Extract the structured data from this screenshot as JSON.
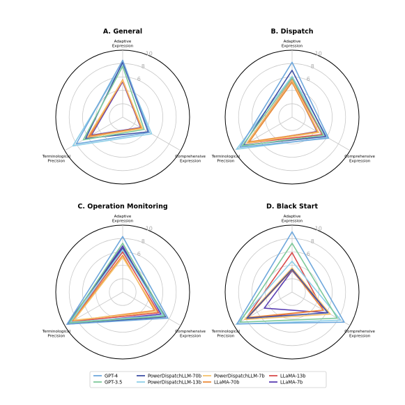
{
  "chart_data": {
    "type": "radar",
    "axes": [
      "Adaptive\nExpression",
      "Comprehensive\nExpression",
      "Terminological\nPrecision"
    ],
    "rlim": [
      0,
      10
    ],
    "radial_ticks": [
      2,
      4,
      6,
      8,
      10
    ],
    "radial_tick_labels": [
      "6",
      "8",
      "10"
    ],
    "grid": true,
    "legend_position": "bottom-center",
    "series_order": [
      "GPT-4",
      "GPT-3.5",
      "PowerDispatchLLM-70b",
      "PowerDispatchLLM-13b",
      "PowerDispatchLLM-7b",
      "LLaMA-70b",
      "LLaMA-13b",
      "LLaMA-7b"
    ],
    "colors": {
      "GPT-4": "#6fa8dc",
      "GPT-3.5": "#7dc99a",
      "PowerDispatchLLM-70b": "#3f51a6",
      "PowerDispatchLLM-13b": "#8ecfe8",
      "PowerDispatchLLM-7b": "#f5c26b",
      "LLaMA-70b": "#ec8c3c",
      "LLaMA-13b": "#d94c4c",
      "LLaMA-7b": "#5b3fb3"
    },
    "panels": [
      {
        "title": "A. General",
        "series": [
          {
            "name": "GPT-4",
            "values": [
              8.5,
              4.6,
              8.0
            ]
          },
          {
            "name": "GPT-3.5",
            "values": [
              7.6,
              3.7,
              6.8
            ]
          },
          {
            "name": "PowerDispatchLLM-70b",
            "values": [
              8.2,
              4.4,
              6.4
            ]
          },
          {
            "name": "PowerDispatchLLM-13b",
            "values": [
              7.9,
              5.0,
              8.6
            ]
          },
          {
            "name": "PowerDispatchLLM-7b",
            "values": [
              5.5,
              3.4,
              6.1
            ]
          },
          {
            "name": "LLaMA-70b",
            "values": [
              5.6,
              3.2,
              5.6
            ]
          },
          {
            "name": "LLaMA-13b",
            "values": [
              5.4,
              3.2,
              5.9
            ]
          },
          {
            "name": "LLaMA-7b",
            "values": [
              5.3,
              3.1,
              5.4
            ]
          }
        ]
      },
      {
        "title": "B. Dispatch",
        "series": [
          {
            "name": "GPT-4",
            "values": [
              8.2,
              6.3,
              9.0
            ]
          },
          {
            "name": "GPT-3.5",
            "values": [
              5.9,
              5.4,
              8.6
            ]
          },
          {
            "name": "PowerDispatchLLM-70b",
            "values": [
              7.0,
              5.8,
              8.4
            ]
          },
          {
            "name": "PowerDispatchLLM-13b",
            "values": [
              6.1,
              6.1,
              9.6
            ]
          },
          {
            "name": "PowerDispatchLLM-7b",
            "values": [
              5.5,
              4.6,
              7.8
            ]
          },
          {
            "name": "LLaMA-70b",
            "values": [
              5.2,
              4.4,
              7.4
            ]
          },
          {
            "name": "LLaMA-13b",
            "values": [
              5.6,
              5.2,
              7.8
            ]
          },
          {
            "name": "LLaMA-7b",
            "values": [
              5.3,
              4.3,
              7.7
            ]
          }
        ]
      },
      {
        "title": "C. Operation Monitoring",
        "series": [
          {
            "name": "GPT-4",
            "values": [
              8.3,
              7.8,
              9.6
            ]
          },
          {
            "name": "GPT-3.5",
            "values": [
              7.3,
              7.2,
              9.2
            ]
          },
          {
            "name": "PowerDispatchLLM-70b",
            "values": [
              6.6,
              7.4,
              9.6
            ]
          },
          {
            "name": "PowerDispatchLLM-13b",
            "values": [
              6.3,
              7.0,
              9.0
            ]
          },
          {
            "name": "PowerDispatchLLM-7b",
            "values": [
              5.2,
              5.9,
              8.4
            ]
          },
          {
            "name": "LLaMA-70b",
            "values": [
              5.5,
              5.5,
              8.6
            ]
          },
          {
            "name": "LLaMA-13b",
            "values": [
              6.0,
              6.2,
              8.8
            ]
          },
          {
            "name": "LLaMA-7b",
            "values": [
              6.9,
              6.6,
              9.4
            ]
          }
        ]
      },
      {
        "title": "D. Black Start",
        "series": [
          {
            "name": "GPT-4",
            "values": [
              9.0,
              9.0,
              9.5
            ]
          },
          {
            "name": "GPT-3.5",
            "values": [
              7.3,
              7.8,
              9.0
            ]
          },
          {
            "name": "PowerDispatchLLM-70b",
            "values": [
              3.4,
              6.2,
              7.8
            ]
          },
          {
            "name": "PowerDispatchLLM-13b",
            "values": [
              4.6,
              8.4,
              9.6
            ]
          },
          {
            "name": "PowerDispatchLLM-7b",
            "values": [
              3.6,
              6.6,
              8.2
            ]
          },
          {
            "name": "LLaMA-70b",
            "values": [
              3.3,
              5.4,
              7.6
            ]
          },
          {
            "name": "LLaMA-13b",
            "values": [
              5.9,
              5.4,
              8.0
            ]
          },
          {
            "name": "LLaMA-7b",
            "values": [
              3.2,
              6.2,
              4.8
            ]
          }
        ]
      }
    ]
  }
}
